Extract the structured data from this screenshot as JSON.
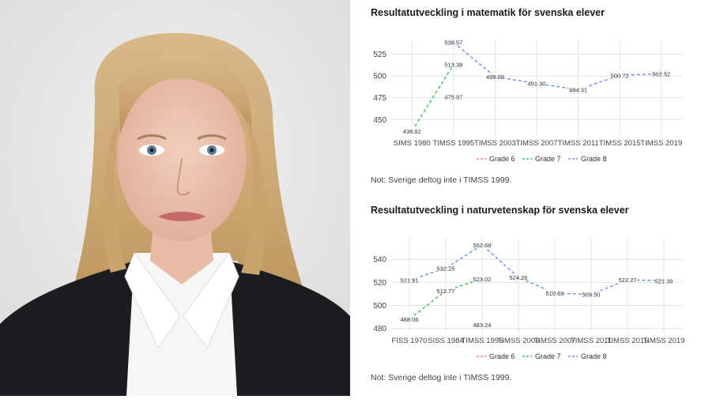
{
  "photo": {
    "description_name": "portrait"
  },
  "colors": {
    "grade6": "#f08070",
    "grade7": "#3fbf5a",
    "grade8": "#6a90e8",
    "grid": "#e2e2e2",
    "axis_text": "#444444"
  },
  "chart_data": [
    {
      "type": "line",
      "title": "Resultatutveckling i matematik för svenska elever",
      "note": "Not: Sverige deltog inte i TIMSS 1999.",
      "categories": [
        "SIMS 1980",
        "TIMSS 1995",
        "TIMSS 2003",
        "TIMSS 2007",
        "TIMSS 2011",
        "TIMSS 2015",
        "TIMSS 2019"
      ],
      "yticks": [
        450,
        475,
        500,
        525
      ],
      "ylim": [
        433,
        540
      ],
      "grid": true,
      "legend_position": "bottom",
      "series": [
        {
          "name": "Grade 6",
          "color": "#f08070",
          "values": [
            null,
            475.97,
            null,
            null,
            null,
            null,
            null
          ],
          "labels": [
            null,
            "475.97",
            null,
            null,
            null,
            null,
            null
          ]
        },
        {
          "name": "Grade 7",
          "color": "#3fbf5a",
          "values": [
            436.82,
            513.38,
            null,
            null,
            null,
            null,
            null
          ],
          "labels": [
            "436.82",
            "513.38",
            null,
            null,
            null,
            null,
            null
          ]
        },
        {
          "name": "Grade 8",
          "color": "#6a90e8",
          "values": [
            null,
            538.57,
            499.08,
            491.3,
            484.31,
            500.72,
            502.52
          ],
          "labels": [
            null,
            "538.57",
            "499.08",
            "491.30",
            "484.31",
            "500.72",
            "502.52"
          ]
        }
      ]
    },
    {
      "type": "line",
      "title": "Resultatutveckling i naturvetenskap för svenska elever",
      "note": "Not: Sverige deltog inte i TIMSS 1999.",
      "categories": [
        "FISS 1970",
        "SISS 1984",
        "TIMSS 1995",
        "TIMSS 2003",
        "TIMSS 2007",
        "TIMSS 2011",
        "TIMSS 2015",
        "TIMSS 2019"
      ],
      "yticks": [
        480,
        500,
        520,
        540
      ],
      "ylim": [
        477,
        558
      ],
      "grid": true,
      "legend_position": "bottom",
      "series": [
        {
          "name": "Grade 6",
          "color": "#f08070",
          "values": [
            null,
            null,
            483.24,
            null,
            null,
            null,
            null,
            null
          ],
          "labels": [
            null,
            null,
            "483.24",
            null,
            null,
            null,
            null,
            null
          ]
        },
        {
          "name": "Grade 7",
          "color": "#3fbf5a",
          "values": [
            488.06,
            512.77,
            523.02,
            null,
            null,
            null,
            null,
            null
          ],
          "labels": [
            "488.06",
            "512.77",
            "523.02",
            null,
            null,
            null,
            null,
            null
          ]
        },
        {
          "name": "Grade 8",
          "color": "#6a90e8",
          "values": [
            521.91,
            532.25,
            552.68,
            524.26,
            510.69,
            509.5,
            522.27,
            521.39
          ],
          "labels": [
            "521.91",
            "532.25",
            "552.68",
            "524.26",
            "510.69",
            "509.50",
            "522.27",
            "521.39"
          ]
        }
      ]
    }
  ]
}
